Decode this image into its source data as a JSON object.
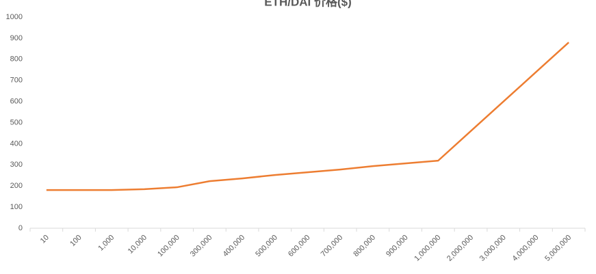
{
  "chart_data": {
    "type": "line",
    "title": "ETH/DAI 价格($)",
    "categories": [
      "10",
      "100",
      "1,000",
      "10,000",
      "100,000",
      "300,000",
      "400,000",
      "500,000",
      "600,000",
      "700,000",
      "800,000",
      "900,000",
      "1,000,000",
      "2,000,000",
      "3,000,000",
      "4,000,000",
      "5,000,000"
    ],
    "series": [
      {
        "name": "ETH/DAI 价格($)",
        "color": "#ed7d31",
        "values": [
          181,
          181,
          181,
          185,
          194,
          223,
          236,
          252,
          265,
          278,
          294,
          307,
          320,
          460,
          600,
          740,
          880
        ]
      }
    ],
    "ylim": [
      0,
      1000
    ],
    "yticks": [
      0,
      100,
      200,
      300,
      400,
      500,
      600,
      700,
      800,
      900,
      1000
    ],
    "grid": false
  }
}
